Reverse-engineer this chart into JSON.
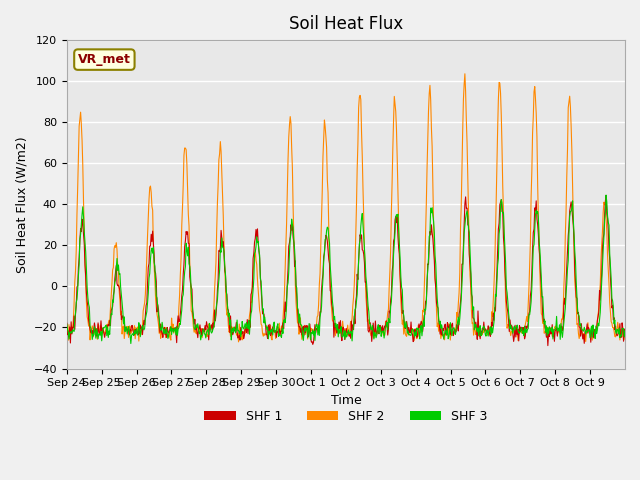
{
  "title": "Soil Heat Flux",
  "xlabel": "Time",
  "ylabel": "Soil Heat Flux (W/m2)",
  "ylim": [
    -40,
    120
  ],
  "yticks": [
    -40,
    -20,
    0,
    20,
    40,
    60,
    80,
    100,
    120
  ],
  "xtick_labels": [
    "Sep 24",
    "Sep 25",
    "Sep 26",
    "Sep 27",
    "Sep 28",
    "Sep 29",
    "Sep 30",
    "Oct 1",
    "Oct 2",
    "Oct 3",
    "Oct 4",
    "Oct 5",
    "Oct 6",
    "Oct 7",
    "Oct 8",
    "Oct 9"
  ],
  "colors": {
    "SHF 1": "#cc0000",
    "SHF 2": "#ff8800",
    "SHF 3": "#00cc00"
  },
  "legend_label": "VR_met",
  "plot_bg": "#e8e8e8",
  "n_days": 16,
  "pts_per_day": 48,
  "shf2_peaks": [
    85,
    22,
    50,
    70,
    70,
    14,
    82,
    80,
    94,
    90,
    95,
    100,
    100,
    98,
    93,
    42
  ],
  "shf1_peaks": [
    30,
    5,
    26,
    26,
    25,
    28,
    29,
    25,
    25,
    33,
    30,
    41,
    40,
    40,
    41,
    42
  ],
  "shf3_peaks": [
    36,
    10,
    18,
    18,
    20,
    22,
    30,
    30,
    32,
    35,
    38,
    39,
    40,
    39,
    41,
    41
  ],
  "night_level": -22
}
